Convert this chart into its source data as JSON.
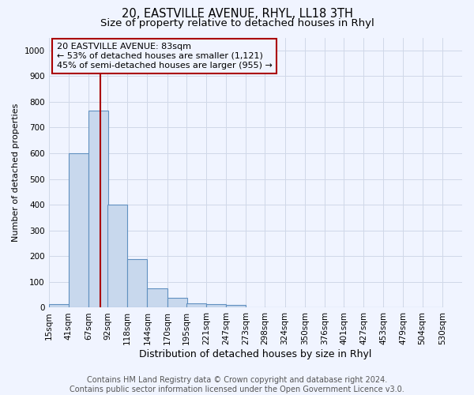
{
  "title1": "20, EASTVILLE AVENUE, RHYL, LL18 3TH",
  "title2": "Size of property relative to detached houses in Rhyl",
  "xlabel": "Distribution of detached houses by size in Rhyl",
  "ylabel": "Number of detached properties",
  "footnote1": "Contains HM Land Registry data © Crown copyright and database right 2024.",
  "footnote2": "Contains public sector information licensed under the Open Government Licence v3.0.",
  "annotation_line1": "20 EASTVILLE AVENUE: 83sqm",
  "annotation_line2": "← 53% of detached houses are smaller (1,121)",
  "annotation_line3": "45% of semi-detached houses are larger (955) →",
  "bar_edges": [
    15,
    41,
    67,
    92,
    118,
    144,
    170,
    195,
    221,
    247,
    273,
    298,
    324,
    350,
    376,
    401,
    427,
    453,
    479,
    504,
    530
  ],
  "bar_heights": [
    15,
    600,
    765,
    400,
    190,
    75,
    38,
    18,
    13,
    12,
    0,
    0,
    0,
    0,
    0,
    0,
    0,
    0,
    0,
    0
  ],
  "bar_color": "#c8d8ed",
  "bar_edge_color": "#6090c0",
  "vline_x": 83,
  "vline_color": "#aa0000",
  "annotation_box_edge_color": "#aa0000",
  "ylim": [
    0,
    1050
  ],
  "yticks": [
    0,
    100,
    200,
    300,
    400,
    500,
    600,
    700,
    800,
    900,
    1000
  ],
  "grid_color": "#d0d8e8",
  "background_color": "#f0f4ff",
  "title1_fontsize": 10.5,
  "title2_fontsize": 9.5,
  "xlabel_fontsize": 9,
  "ylabel_fontsize": 8,
  "tick_fontsize": 7.5,
  "annotation_fontsize": 8,
  "footnote_fontsize": 7
}
